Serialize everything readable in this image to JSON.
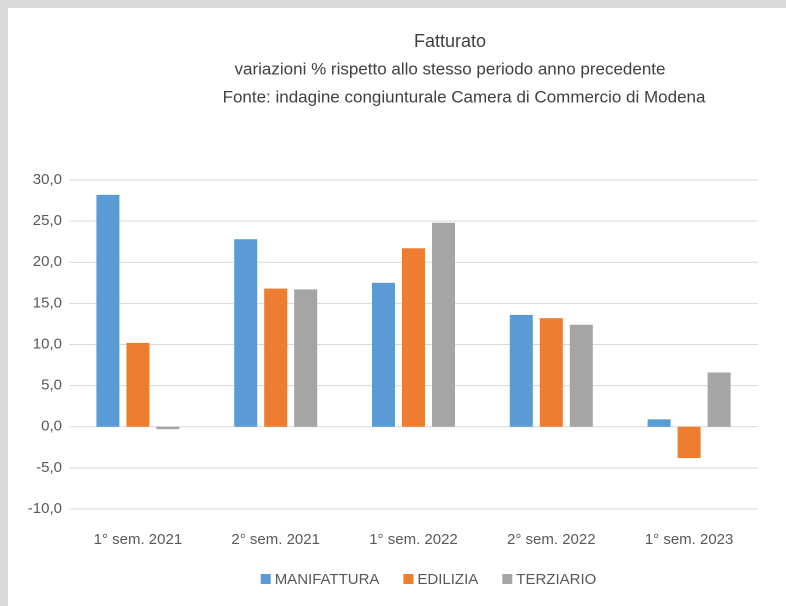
{
  "chart_data": {
    "type": "bar",
    "title": "Fatturato",
    "subtitle": [
      "variazioni % rispetto allo stesso periodo anno precedente",
      "Fonte: indagine congiunturale Camera di Commercio di Modena"
    ],
    "categories": [
      "1° sem. 2021",
      "2° sem. 2021",
      "1° sem. 2022",
      "2° sem. 2022",
      "1° sem. 2023"
    ],
    "series": [
      {
        "name": "MANIFATTURA",
        "color": "#5b9bd5",
        "values": [
          28.2,
          22.8,
          17.5,
          13.6,
          0.9
        ]
      },
      {
        "name": "EDILIZIA",
        "color": "#ed7d31",
        "values": [
          10.2,
          16.8,
          21.7,
          13.2,
          -3.8
        ]
      },
      {
        "name": "TERZIARIO",
        "color": "#a5a5a5",
        "values": [
          -0.3,
          16.7,
          24.8,
          12.4,
          6.6
        ]
      }
    ],
    "ylim": [
      -10,
      30
    ],
    "yticks": [
      {
        "value": -10,
        "label": "-10,0"
      },
      {
        "value": -5,
        "label": "-5,0"
      },
      {
        "value": 0,
        "label": "0,0"
      },
      {
        "value": 5,
        "label": "5,0"
      },
      {
        "value": 10,
        "label": "10,0"
      },
      {
        "value": 15,
        "label": "15,0"
      },
      {
        "value": 20,
        "label": "20,0"
      },
      {
        "value": 25,
        "label": "25,0"
      },
      {
        "value": 30,
        "label": "30,0"
      }
    ],
    "grid": true,
    "legend": "bottom"
  }
}
